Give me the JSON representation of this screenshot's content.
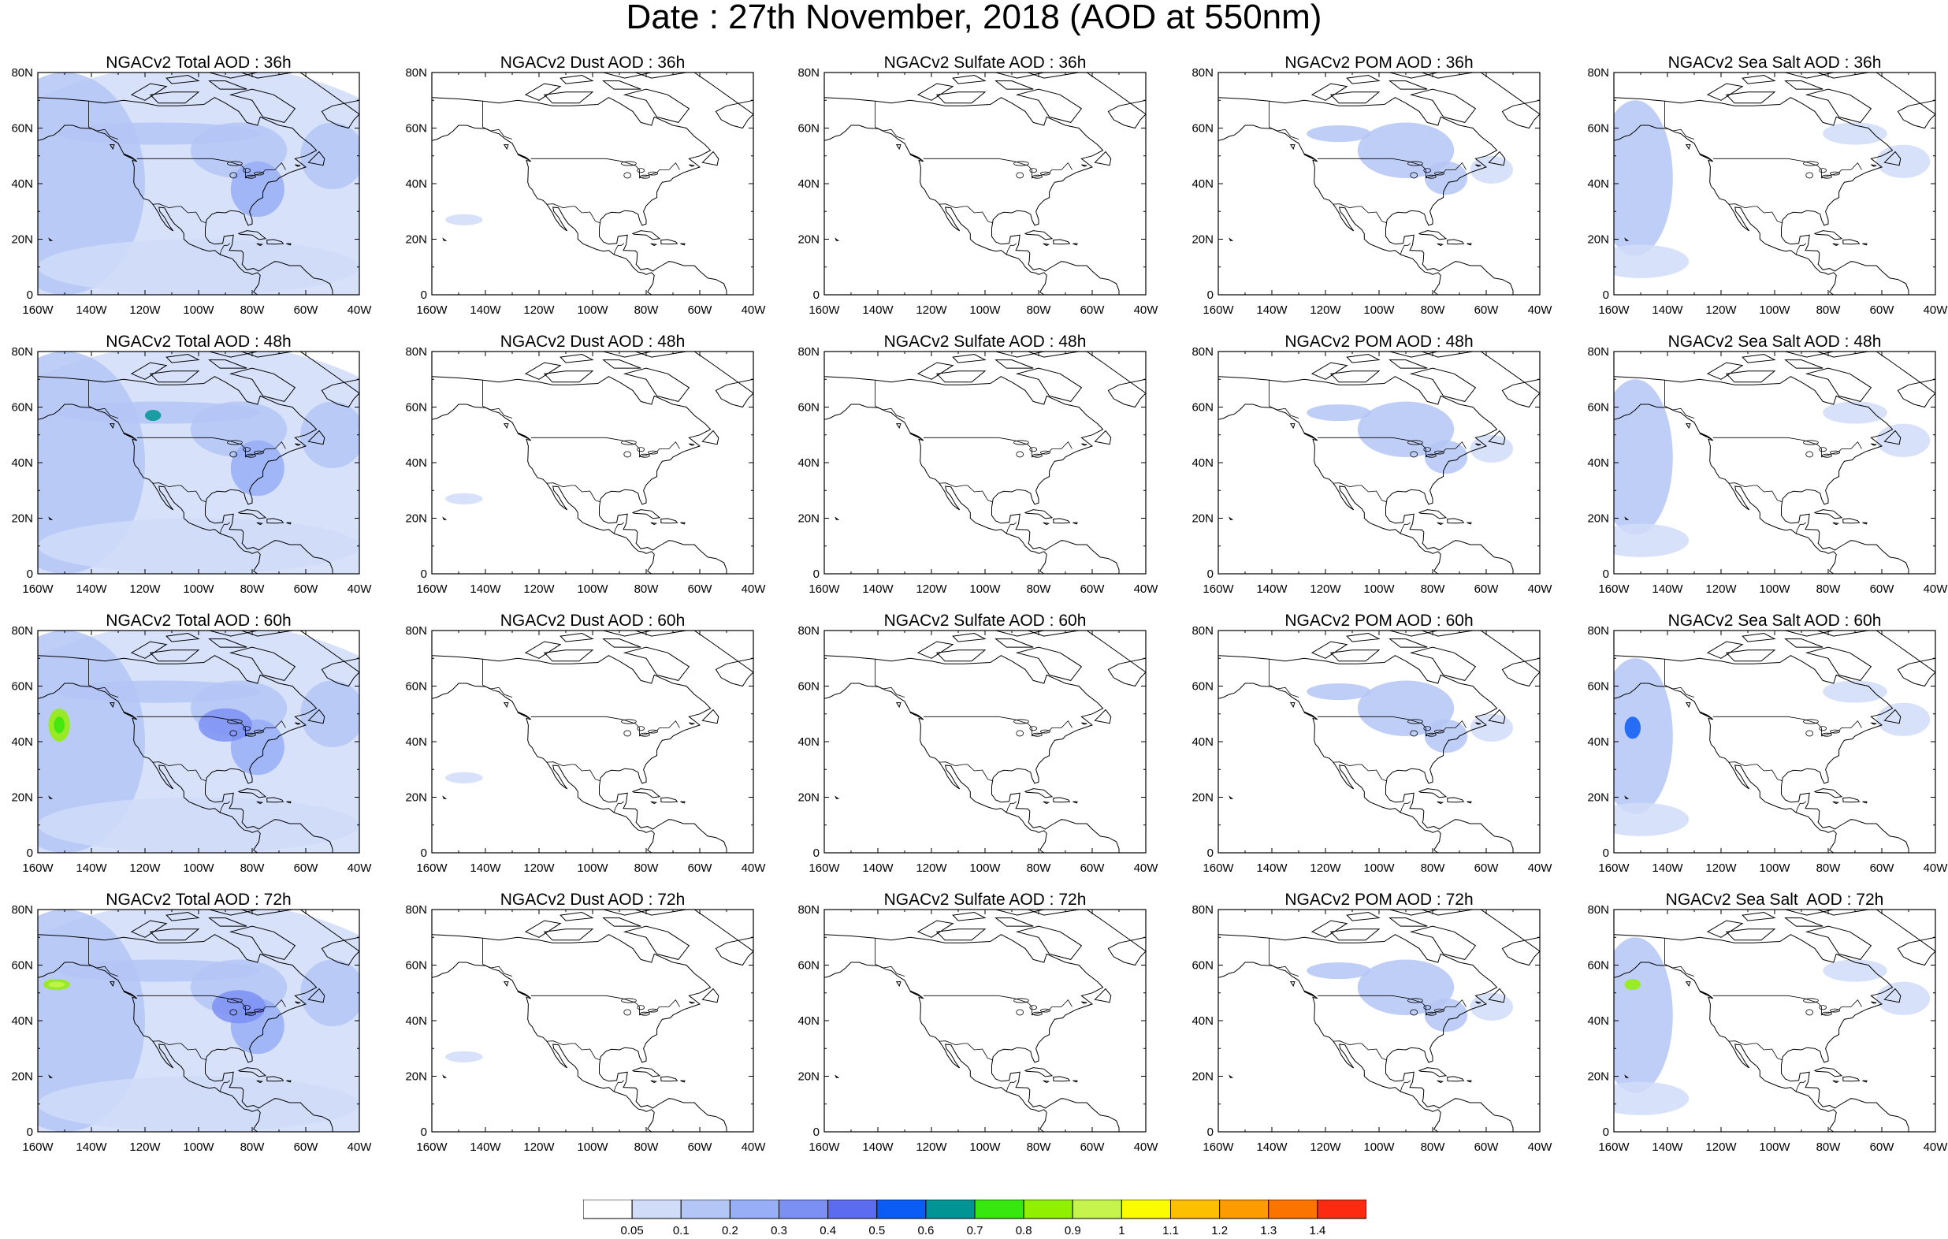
{
  "title": "Date : 27th November, 2018 (AOD at 550nm)",
  "columns": [
    "total",
    "dust",
    "sulfate",
    "pom",
    "seasalt"
  ],
  "panels": [
    {
      "title": "NGACv2 Total AOD : 36h",
      "field": "total",
      "hour": 36
    },
    {
      "title": "NGACv2 Dust AOD : 36h",
      "field": "dust",
      "hour": 36
    },
    {
      "title": "NGACv2 Sulfate AOD : 36h",
      "field": "sulfate",
      "hour": 36
    },
    {
      "title": "NGACv2 POM AOD : 36h",
      "field": "pom",
      "hour": 36
    },
    {
      "title": "NGACv2 Sea Salt AOD : 36h",
      "field": "seasalt",
      "hour": 36
    },
    {
      "title": "NGACv2 Total AOD : 48h",
      "field": "total",
      "hour": 48
    },
    {
      "title": "NGACv2 Dust AOD : 48h",
      "field": "dust",
      "hour": 48
    },
    {
      "title": "NGACv2 Sulfate AOD : 48h",
      "field": "sulfate",
      "hour": 48
    },
    {
      "title": "NGACv2 POM AOD : 48h",
      "field": "pom",
      "hour": 48
    },
    {
      "title": "NGACv2 Sea Salt AOD : 48h",
      "field": "seasalt",
      "hour": 48
    },
    {
      "title": "NGACv2 Total AOD : 60h",
      "field": "total",
      "hour": 60
    },
    {
      "title": "NGACv2 Dust AOD : 60h",
      "field": "dust",
      "hour": 60
    },
    {
      "title": "NGACv2 Sulfate AOD : 60h",
      "field": "sulfate",
      "hour": 60
    },
    {
      "title": "NGACv2 POM AOD : 60h",
      "field": "pom",
      "hour": 60
    },
    {
      "title": "NGACv2 Sea Salt AOD : 60h",
      "field": "seasalt",
      "hour": 60
    },
    {
      "title": "NGACv2 Total AOD : 72h",
      "field": "total",
      "hour": 72
    },
    {
      "title": "NGACv2 Dust AOD : 72h",
      "field": "dust",
      "hour": 72
    },
    {
      "title": "NGACv2 Sulfate AOD : 72h",
      "field": "sulfate",
      "hour": 72
    },
    {
      "title": "NGACv2 POM AOD : 72h",
      "field": "pom",
      "hour": 72
    },
    {
      "title": "NGACv2 Sea Salt  AOD : 72h",
      "field": "seasalt",
      "hour": 72
    }
  ],
  "map": {
    "lon_range": [
      -160,
      -40
    ],
    "lat_range": [
      0,
      80
    ],
    "lon_ticks": [
      -160,
      -140,
      -120,
      -100,
      -80,
      -60,
      -40
    ],
    "lon_tick_labels": [
      "160W",
      "140W",
      "120W",
      "100W",
      "80W",
      "60W",
      "40W"
    ],
    "lat_ticks": [
      0,
      20,
      40,
      60,
      80
    ],
    "lat_tick_labels": [
      "0",
      "20N",
      "40N",
      "60N",
      "80N"
    ]
  },
  "colorbar": {
    "levels": [
      "0.05",
      "0.1",
      "0.2",
      "0.3",
      "0.4",
      "0.5",
      "0.6",
      "0.7",
      "0.8",
      "0.9",
      "1",
      "1.1",
      "1.2",
      "1.3",
      "1.4"
    ],
    "colors": [
      "#ffffff",
      "#d0dcf8",
      "#b4c6f6",
      "#98aef6",
      "#7c90f4",
      "#5c6cf0",
      "#0a5cf4",
      "#009494",
      "#36e80e",
      "#90f000",
      "#c6f44c",
      "#fcfc00",
      "#fcc000",
      "#fc9c00",
      "#fc7400",
      "#fc2a10"
    ]
  }
}
